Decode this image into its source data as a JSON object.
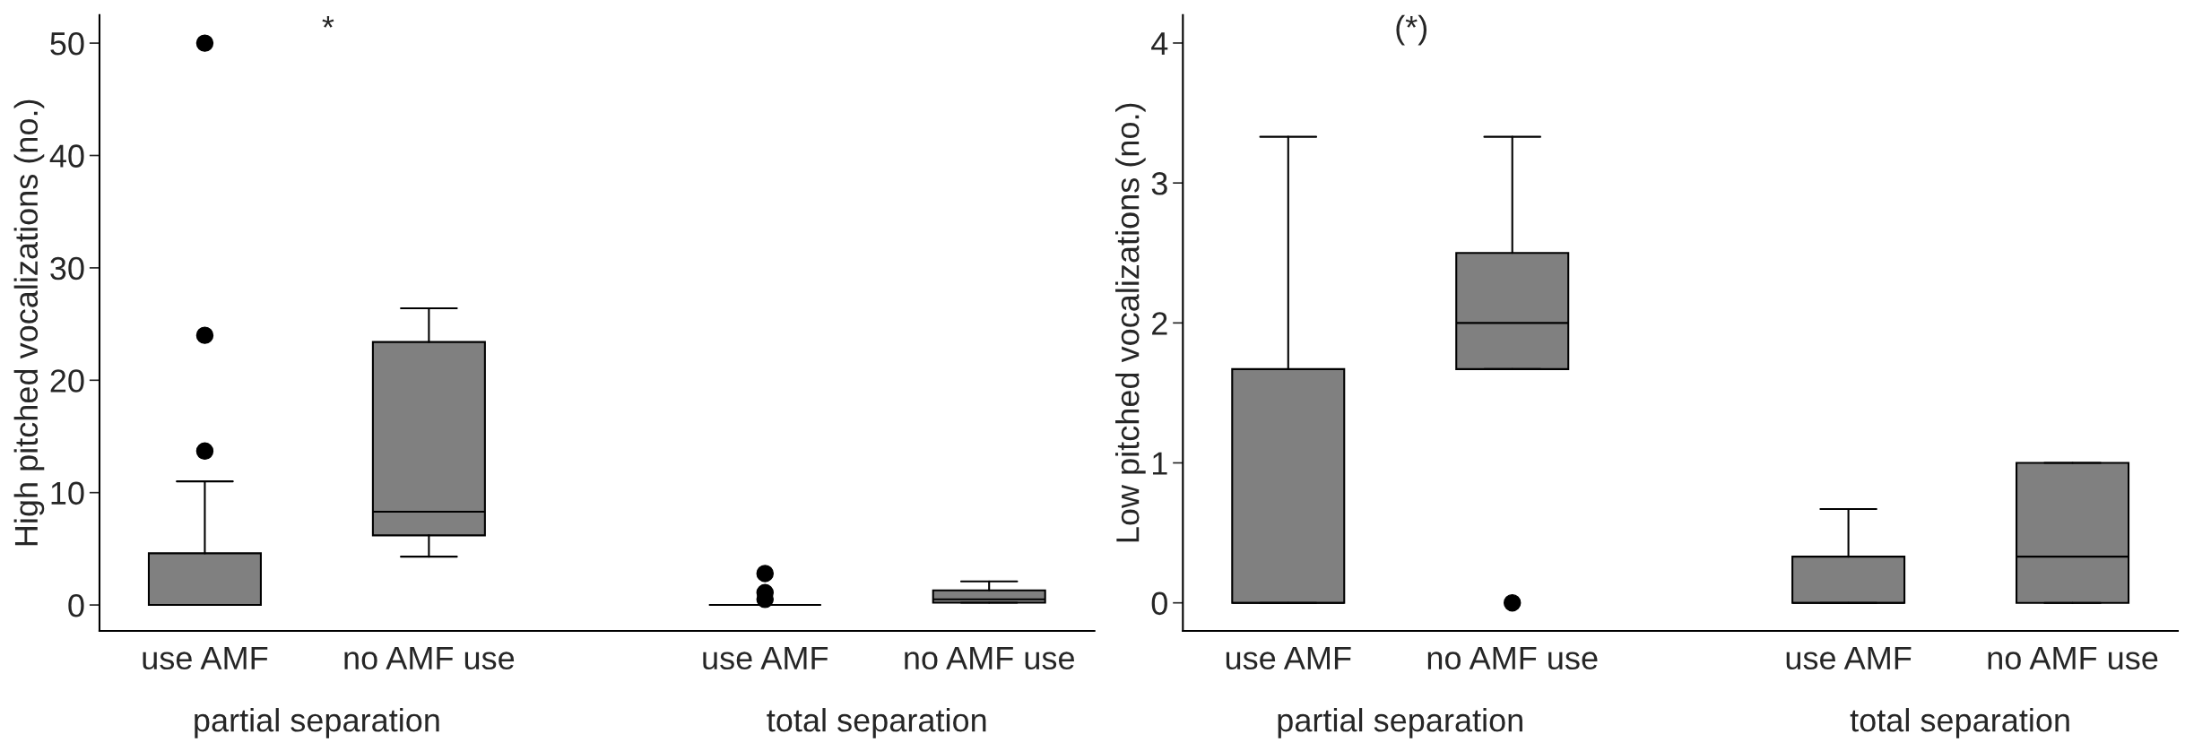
{
  "chart_data": [
    {
      "type": "box",
      "ylabel": "High pitched vocalizations (no.)",
      "categories": [
        "use AMF",
        "no AMF use",
        "use AMF",
        "no AMF use"
      ],
      "color": "#808080",
      "ylim": [
        -2.3,
        52.5
      ],
      "yticks": [
        0,
        10,
        20,
        30,
        40,
        50
      ],
      "grid": false,
      "boxes": [
        {
          "low": 0,
          "q1": 0,
          "median": 0,
          "q3": 4.6,
          "high": 11,
          "outliers": [
            13.7,
            24,
            50
          ]
        },
        {
          "low": 4.3,
          "q1": 6.2,
          "median": 8.3,
          "q3": 23.4,
          "high": 26.4
        },
        {
          "low": 0,
          "q1": 0,
          "median": 0,
          "q3": 0,
          "high": 0,
          "outliers": [
            0.5,
            1.1,
            2.8
          ]
        },
        {
          "low": 0.2,
          "q1": 0.2,
          "median": 0.5,
          "q3": 1.3,
          "high": 2.1
        }
      ],
      "annotations": [
        "*",
        "partial separation",
        "total separation"
      ]
    },
    {
      "type": "box",
      "ylabel": "Low pitched vocalizations (no.)",
      "categories": [
        "use AMF",
        "no AMF use",
        "use AMF",
        "no AMF use"
      ],
      "color": "#808080",
      "ylim": [
        -0.2,
        4.2
      ],
      "yticks": [
        0,
        1,
        2,
        3,
        4
      ],
      "grid": false,
      "boxes": [
        {
          "low": 0,
          "q1": 0,
          "median": 0,
          "q3": 1.67,
          "high": 3.33
        },
        {
          "low": 1.67,
          "q1": 1.67,
          "median": 2,
          "q3": 2.5,
          "high": 3.33,
          "outliers": [
            0
          ]
        },
        {
          "low": 0,
          "q1": 0,
          "median": 0,
          "q3": 0.33,
          "high": 0.67
        },
        {
          "low": 0,
          "q1": 0,
          "median": 0.33,
          "q3": 1,
          "high": 1
        }
      ],
      "annotations": [
        "(*)",
        "partial separation",
        "total separation"
      ]
    }
  ]
}
